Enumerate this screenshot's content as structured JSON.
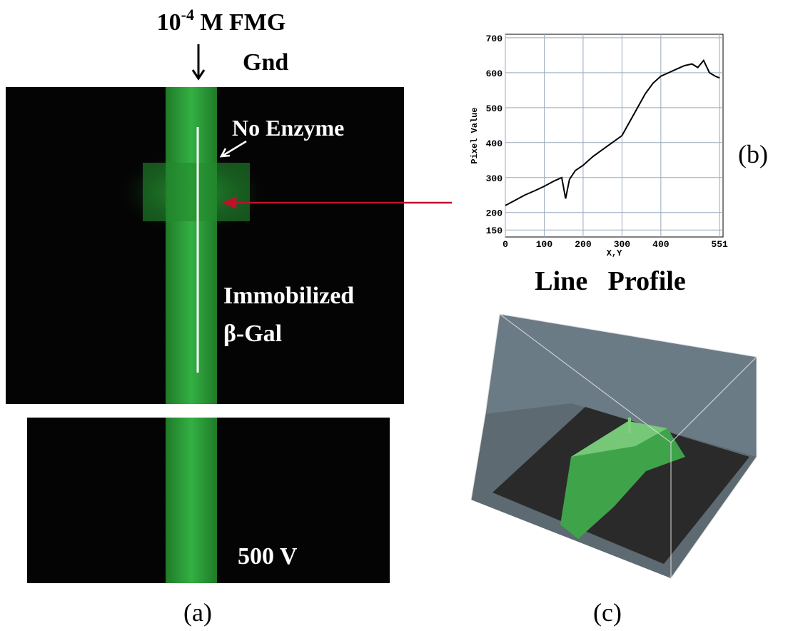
{
  "figure": {
    "reagent_base": "10",
    "reagent_exponent": "-4",
    "reagent_rest": " M FMG",
    "ground": "Gnd",
    "no_enzyme": "No Enzyme",
    "immobilized": "Immobilized",
    "gal": "β-Gal",
    "voltage": "500 V",
    "label_a": "(a)",
    "label_b": "(b)",
    "label_c": "(c)",
    "profile_caption": "Line   Profile"
  },
  "chart_data": {
    "type": "line",
    "x_label": "X,Y",
    "y_label": "Pixel Value",
    "x": [
      0,
      25,
      50,
      75,
      100,
      125,
      145,
      155,
      165,
      180,
      200,
      225,
      250,
      275,
      300,
      320,
      340,
      360,
      380,
      400,
      420,
      440,
      460,
      480,
      495,
      510,
      525,
      540,
      551
    ],
    "series": [
      {
        "name": "Pixel Value",
        "color": "#000000",
        "values": [
          220,
          235,
          250,
          262,
          275,
          290,
          300,
          240,
          295,
          320,
          335,
          360,
          380,
          400,
          420,
          460,
          500,
          540,
          570,
          590,
          600,
          610,
          620,
          625,
          615,
          635,
          600,
          590,
          585
        ]
      }
    ],
    "xlim": [
      0,
      560
    ],
    "ylim": [
      130,
      710
    ],
    "xticks": [
      0,
      100,
      200,
      300,
      400,
      551
    ],
    "yticks": [
      150,
      200,
      300,
      400,
      500,
      600,
      700
    ],
    "grid": true
  }
}
